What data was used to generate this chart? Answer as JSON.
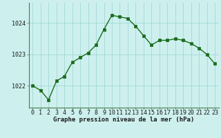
{
  "x": [
    0,
    1,
    2,
    3,
    4,
    5,
    6,
    7,
    8,
    9,
    10,
    11,
    12,
    13,
    14,
    15,
    16,
    17,
    18,
    19,
    20,
    21,
    22,
    23
  ],
  "y": [
    1022.0,
    1021.85,
    1021.55,
    1022.15,
    1022.3,
    1022.75,
    1022.9,
    1023.05,
    1023.3,
    1023.8,
    1024.25,
    1024.2,
    1024.15,
    1023.9,
    1023.6,
    1023.3,
    1023.45,
    1023.45,
    1023.5,
    1023.45,
    1023.35,
    1023.2,
    1023.0,
    1022.7
  ],
  "line_color": "#1a6b1a",
  "marker_color": "#1a6b1a",
  "bg_color": "#cdf0ee",
  "grid_color": "#a0d8d4",
  "axis_line_color": "#4a7a4a",
  "xlabel": "Graphe pression niveau de la mer (hPa)",
  "xlabel_fontsize": 6.5,
  "ylabel_ticks": [
    1022,
    1023,
    1024
  ],
  "xlim": [
    -0.5,
    23.5
  ],
  "ylim": [
    1021.3,
    1024.65
  ],
  "tick_fontsize": 6.0,
  "marker_size": 2.5,
  "line_width": 1.0
}
